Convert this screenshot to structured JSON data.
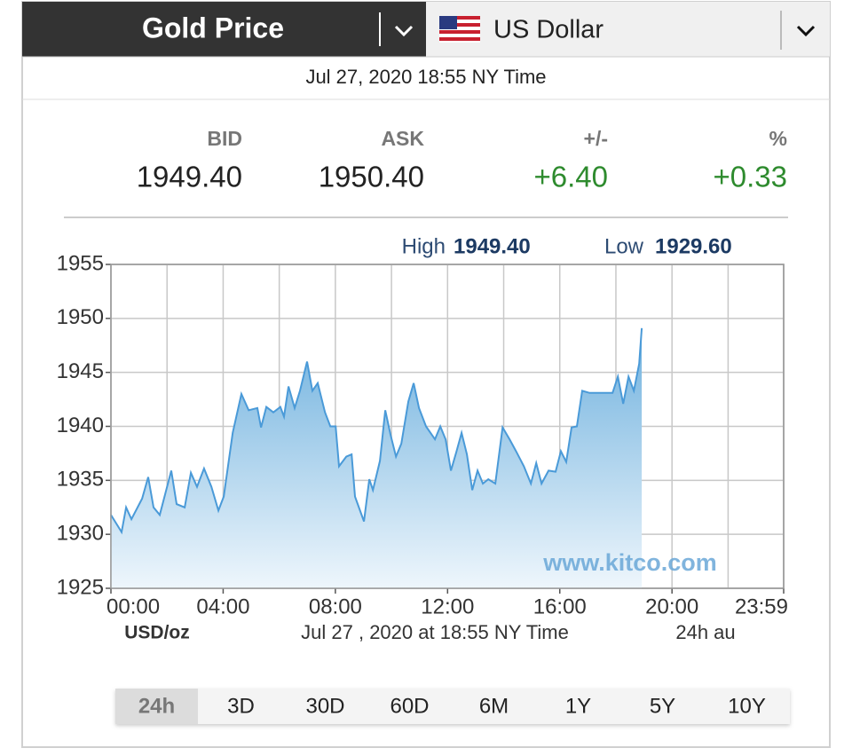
{
  "header": {
    "title": "Gold Price",
    "currency": "US Dollar",
    "timestamp": "Jul 27, 2020 18:55 NY Time"
  },
  "quotes": [
    {
      "label": "BID",
      "value": "1949.40"
    },
    {
      "label": "ASK",
      "value": "1950.40"
    },
    {
      "label": "+/-",
      "value": "+6.40"
    },
    {
      "label": "%",
      "value": "+0.33"
    }
  ],
  "range": {
    "high_label": "High",
    "high": "1949.40",
    "low_label": "Low",
    "low": "1929.60"
  },
  "chart_data": {
    "type": "area",
    "color": "#4a9ad8",
    "x": [
      0,
      0.38,
      0.54,
      0.73,
      1.11,
      1.33,
      1.52,
      1.74,
      2.15,
      2.34,
      2.63,
      2.85,
      3.07,
      3.32,
      3.58,
      3.83,
      4.02,
      4.34,
      4.65,
      4.91,
      5.22,
      5.35,
      5.54,
      5.79,
      6.04,
      6.17,
      6.33,
      6.55,
      6.74,
      6.99,
      7.18,
      7.37,
      7.63,
      7.82,
      8.01,
      8.13,
      8.39,
      8.58,
      8.7,
      9.02,
      9.21,
      9.34,
      9.59,
      9.78,
      9.97,
      10.16,
      10.35,
      10.6,
      10.79,
      10.98,
      11.23,
      11.55,
      11.74,
      11.93,
      12.12,
      12.31,
      12.5,
      12.69,
      12.88,
      13.07,
      13.26,
      13.45,
      13.7,
      13.96,
      14.21,
      14.46,
      14.72,
      14.97,
      15.16,
      15.35,
      15.6,
      15.85,
      16.04,
      16.23,
      16.42,
      16.61,
      16.8,
      17.06,
      17.31,
      17.56,
      17.88,
      18.07,
      18.26,
      18.45,
      18.64,
      18.83,
      18.92
    ],
    "values": [
      1931.8,
      1930.2,
      1932.5,
      1931.4,
      1933.3,
      1935.3,
      1932.5,
      1931.8,
      1935.9,
      1932.8,
      1932.5,
      1935.7,
      1934.4,
      1936.1,
      1934.4,
      1932.2,
      1933.5,
      1939.4,
      1943.0,
      1941.5,
      1941.7,
      1939.9,
      1941.8,
      1941.3,
      1941.8,
      1940.9,
      1943.7,
      1941.7,
      1943.3,
      1946.0,
      1943.3,
      1944.0,
      1941.3,
      1940.0,
      1940.0,
      1936.3,
      1937.2,
      1937.4,
      1933.5,
      1931.2,
      1935.1,
      1934.1,
      1936.8,
      1941.5,
      1939.2,
      1937.2,
      1938.4,
      1942.3,
      1944.0,
      1941.7,
      1940.0,
      1938.8,
      1940.0,
      1938.8,
      1935.9,
      1937.6,
      1939.4,
      1937.4,
      1934.1,
      1935.9,
      1934.7,
      1935.1,
      1934.7,
      1939.9,
      1938.8,
      1937.6,
      1936.3,
      1934.7,
      1936.6,
      1934.7,
      1935.9,
      1935.8,
      1937.7,
      1936.7,
      1939.9,
      1940.0,
      1943.3,
      1943.1,
      1943.1,
      1943.1,
      1943.1,
      1944.6,
      1942.1,
      1944.6,
      1943.3,
      1945.8,
      1949.1
    ],
    "xlim": [
      0,
      23.98
    ],
    "ylim": [
      1925,
      1955
    ],
    "xticks": [
      {
        "value": 0,
        "label": "00:00"
      },
      {
        "value": 2,
        "label": null
      },
      {
        "value": 4,
        "label": "04:00"
      },
      {
        "value": 6,
        "label": null
      },
      {
        "value": 8,
        "label": "08:00"
      },
      {
        "value": 10,
        "label": null
      },
      {
        "value": 12,
        "label": "12:00"
      },
      {
        "value": 14,
        "label": null
      },
      {
        "value": 16,
        "label": "16:00"
      },
      {
        "value": 18,
        "label": null
      },
      {
        "value": 20,
        "label": "20:00"
      },
      {
        "value": 22,
        "label": null
      },
      {
        "value": 23.98,
        "label": "23:59"
      }
    ],
    "yticks": [
      1925,
      1930,
      1935,
      1940,
      1945,
      1950,
      1955
    ],
    "grid": true,
    "unit_label": "USD/oz",
    "footnote": "Jul 27 , 2020 at 18:55 NY Time",
    "range_note": "24h au",
    "watermark": "www.kitco.com"
  },
  "tabs": {
    "items": [
      "24h",
      "3D",
      "30D",
      "60D",
      "6M",
      "1Y",
      "5Y",
      "10Y"
    ],
    "active": 0
  }
}
